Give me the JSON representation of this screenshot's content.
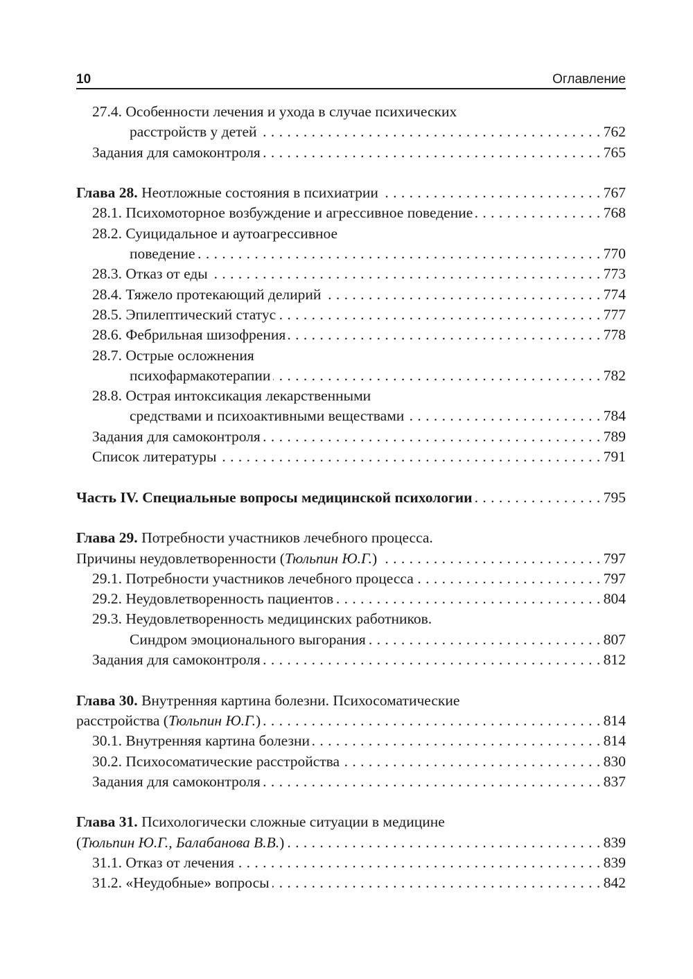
{
  "header": {
    "page_number": "10",
    "section_title": "Оглавление"
  },
  "rows": [
    {
      "indent": 1,
      "bold": "",
      "text": "27.4. Особенности лечения и ухода в случае психических",
      "italic": "",
      "after": "",
      "page": ""
    },
    {
      "indent": 2,
      "bold": "",
      "text": "расстройств у детей",
      "italic": "",
      "after": "",
      "page": "762"
    },
    {
      "indent": 1,
      "bold": "",
      "text": "Задания для самоконтроля",
      "italic": "",
      "after": "",
      "page": "765"
    },
    null,
    {
      "indent": 0,
      "bold": "Глава 28.",
      "text": " Неотложные состояния в психиатрии",
      "italic": "",
      "after": "",
      "page": "767"
    },
    {
      "indent": 1,
      "bold": "",
      "text": "28.1. Психомоторное возбуждение и агрессивное поведение",
      "italic": "",
      "after": "",
      "page": "768"
    },
    {
      "indent": 1,
      "bold": "",
      "text": "28.2. Суицидальное и аутоагрессивное",
      "italic": "",
      "after": "",
      "page": ""
    },
    {
      "indent": 2,
      "bold": "",
      "text": "поведение",
      "italic": "",
      "after": "",
      "page": "770"
    },
    {
      "indent": 1,
      "bold": "",
      "text": "28.3. Отказ от еды",
      "italic": "",
      "after": "",
      "page": "773"
    },
    {
      "indent": 1,
      "bold": "",
      "text": "28.4. Тяжело протекающий делирий",
      "italic": "",
      "after": "",
      "page": "774"
    },
    {
      "indent": 1,
      "bold": "",
      "text": "28.5. Эпилептический статус",
      "italic": "",
      "after": "",
      "page": "777"
    },
    {
      "indent": 1,
      "bold": "",
      "text": "28.6. Фебрильная шизофрения",
      "italic": "",
      "after": "",
      "page": "778"
    },
    {
      "indent": 1,
      "bold": "",
      "text": "28.7. Острые осложнения",
      "italic": "",
      "after": "",
      "page": ""
    },
    {
      "indent": 2,
      "bold": "",
      "text": "психофармакотерапии",
      "italic": "",
      "after": "",
      "page": "782"
    },
    {
      "indent": 1,
      "bold": "",
      "text": "28.8. Острая интоксикация лекарственными",
      "italic": "",
      "after": "",
      "page": ""
    },
    {
      "indent": 2,
      "bold": "",
      "text": "средствами и психоактивными веществами",
      "italic": "",
      "after": "",
      "page": "784"
    },
    {
      "indent": 1,
      "bold": "",
      "text": "Задания для самоконтроля",
      "italic": "",
      "after": "",
      "page": "789"
    },
    {
      "indent": 1,
      "bold": "",
      "text": "Список литературы",
      "italic": "",
      "after": "",
      "page": "791"
    },
    null,
    {
      "indent": 0,
      "bold": "Часть IV. Специальные вопросы медицинской психологии",
      "text": "",
      "italic": "",
      "after": "",
      "page": "795"
    },
    null,
    {
      "indent": 0,
      "bold": "Глава 29.",
      "text": " Потребности участников лечебного процесса.",
      "italic": "",
      "after": "",
      "page": ""
    },
    {
      "indent": 0,
      "bold": "",
      "text": "Причины неудовлетворенности (",
      "italic": "Тюльпин Ю.Г.",
      "after": ")",
      "page": "797"
    },
    {
      "indent": 1,
      "bold": "",
      "text": "29.1. Потребности участников лечебного процесса",
      "italic": "",
      "after": "",
      "page": "797"
    },
    {
      "indent": 1,
      "bold": "",
      "text": "29.2. Неудовлетворенность пациентов",
      "italic": "",
      "after": "",
      "page": "804"
    },
    {
      "indent": 1,
      "bold": "",
      "text": "29.3. Неудовлетворенность медицинских работников.",
      "italic": "",
      "after": "",
      "page": ""
    },
    {
      "indent": 2,
      "bold": "",
      "text": "Синдром эмоционального выгорания",
      "italic": "",
      "after": "",
      "page": "807"
    },
    {
      "indent": 1,
      "bold": "",
      "text": "Задания для самоконтроля",
      "italic": "",
      "after": "",
      "page": "812"
    },
    null,
    {
      "indent": 0,
      "bold": "Глава 30.",
      "text": " Внутренняя картина болезни. Психосоматические",
      "italic": "",
      "after": "",
      "page": ""
    },
    {
      "indent": 0,
      "bold": "",
      "text": "расстройства (",
      "italic": "Тюльпин Ю.Г.",
      "after": ")",
      "page": "814"
    },
    {
      "indent": 1,
      "bold": "",
      "text": "30.1. Внутренняя картина болезни",
      "italic": "",
      "after": "",
      "page": "814"
    },
    {
      "indent": 1,
      "bold": "",
      "text": "30.2. Психосоматические расстройства",
      "italic": "",
      "after": "",
      "page": "830"
    },
    {
      "indent": 1,
      "bold": "",
      "text": "Задания для самоконтроля",
      "italic": "",
      "after": "",
      "page": "837"
    },
    null,
    {
      "indent": 0,
      "bold": "Глава 31.",
      "text": " Психологически сложные ситуации в медицине",
      "italic": "",
      "after": "",
      "page": ""
    },
    {
      "indent": 0,
      "bold": "",
      "text": "(",
      "italic": "Тюльпин Ю.Г., Балабанова В.В.",
      "after": ")",
      "page": "839"
    },
    {
      "indent": 1,
      "bold": "",
      "text": "31.1. Отказ от лечения",
      "italic": "",
      "after": "",
      "page": "839"
    },
    {
      "indent": 1,
      "bold": "",
      "text": "31.2. «Неудобные» вопросы",
      "italic": "",
      "after": "",
      "page": "842"
    }
  ]
}
